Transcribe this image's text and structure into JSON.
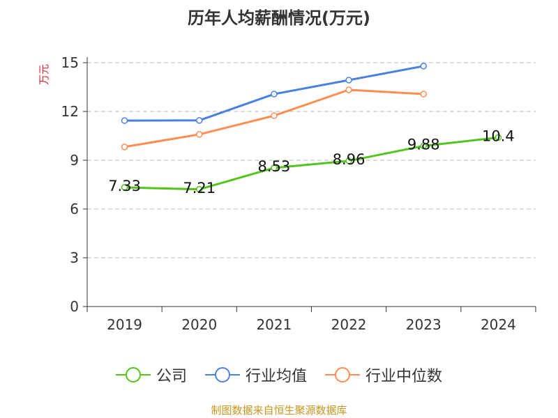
{
  "chart_data": {
    "type": "line",
    "title": "历年人均薪酬情况(万元)",
    "ylabel": "万元",
    "categories": [
      "2019",
      "2020",
      "2021",
      "2022",
      "2023",
      "2024"
    ],
    "ylim": [
      0,
      15
    ],
    "yticks": [
      0,
      3,
      6,
      9,
      12,
      15
    ],
    "grid": true,
    "legend_position": "bottom",
    "series": [
      {
        "name": "公司",
        "color": "#52c41a",
        "values": [
          7.33,
          7.21,
          8.53,
          8.96,
          9.88,
          10.4
        ],
        "labels": [
          "7.33",
          "7.21",
          "8.53",
          "8.96",
          "9.88",
          "10.4"
        ]
      },
      {
        "name": "行业均值",
        "color": "#4a80e0",
        "values": [
          11.44,
          11.45,
          13.07,
          13.93,
          14.79,
          null
        ]
      },
      {
        "name": "行业中位数",
        "color": "#ff8c50",
        "values": [
          9.82,
          10.59,
          11.74,
          13.33,
          13.07,
          null
        ]
      }
    ]
  },
  "source": "制图数据来自恒生聚源数据库"
}
